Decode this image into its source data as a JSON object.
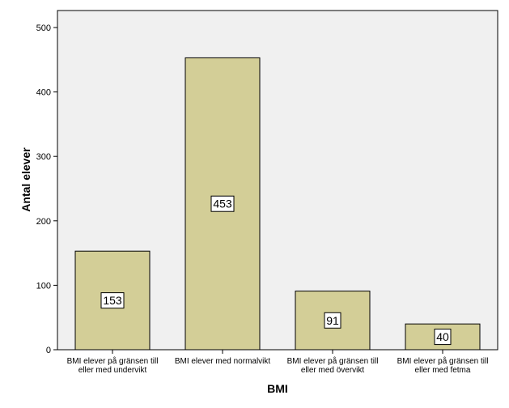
{
  "chart_data": {
    "type": "bar",
    "xlabel": "BMI",
    "ylabel": "Antal elever",
    "ylim": [
      0,
      500
    ],
    "yticks": [
      0,
      100,
      200,
      300,
      400,
      500
    ],
    "grid": false,
    "categories": [
      [
        "BMI elever på gränsen till",
        "eller med undervikt"
      ],
      [
        "BMI elever med normalvikt"
      ],
      [
        "BMI elever på gränsen till",
        "eller med övervikt"
      ],
      [
        "BMI elever på gränsen till",
        "eller med fetma"
      ]
    ],
    "values": [
      153,
      453,
      91,
      40
    ],
    "data_labels": [
      "153",
      "453",
      "91",
      "40"
    ],
    "colors": {
      "plot_background": "#f0f0f0",
      "bar_fill": "#d3ce97",
      "bar_stroke": "#000000"
    }
  }
}
